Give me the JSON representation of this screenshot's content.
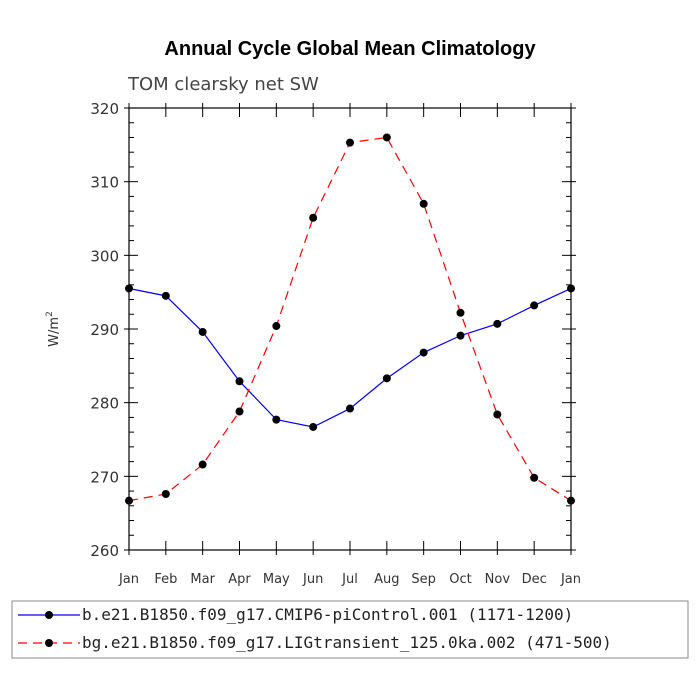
{
  "chart_data": {
    "type": "line",
    "title": "Annual Cycle Global Mean Climatology",
    "subtitle": "TOM clearsky net SW",
    "ylabel": "W/m",
    "ylabel_sup": "2",
    "xlabel": "",
    "ylim": [
      260,
      320
    ],
    "yticks": [
      "260",
      "270",
      "280",
      "290",
      "300",
      "310",
      "320"
    ],
    "categories": [
      "Jan",
      "Feb",
      "Mar",
      "Apr",
      "May",
      "Jun",
      "Jul",
      "Aug",
      "Sep",
      "Oct",
      "Nov",
      "Dec",
      "Jan"
    ],
    "series": [
      {
        "name": "b.e21.B1850.f09_g17.CMIP6-piControl.001 (1171-1200)",
        "color": "#0000ff",
        "style": "solid",
        "values": [
          295.5,
          294.5,
          289.6,
          282.9,
          277.7,
          276.7,
          279.2,
          283.3,
          286.8,
          289.1,
          290.7,
          293.2,
          295.5
        ]
      },
      {
        "name": "bg.e21.B1850.f09_g17.LIGtransient_125.0ka.002 (471-500)",
        "color": "#ff0000",
        "style": "dashed",
        "values": [
          266.7,
          267.6,
          271.6,
          278.8,
          290.4,
          305.1,
          315.3,
          316.0,
          307.0,
          292.2,
          278.4,
          269.8,
          266.7
        ]
      }
    ]
  }
}
